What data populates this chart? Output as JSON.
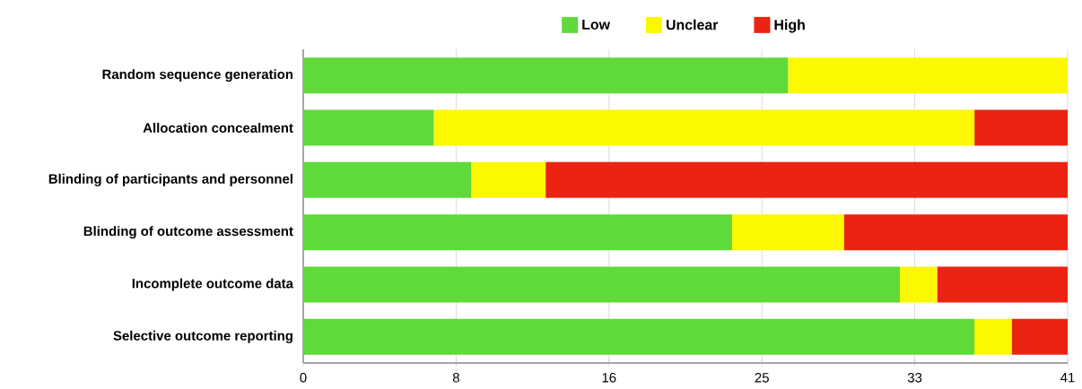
{
  "chart_data": {
    "type": "bar",
    "orientation": "horizontal",
    "stacked": true,
    "categories": [
      "Random sequence generation",
      "Allocation concealment",
      "Blinding of participants and personnel",
      "Blinding of outcome assessment",
      "Incomplete outcome data",
      "Selective outcome reporting"
    ],
    "series": [
      {
        "name": "Low",
        "color": "#5fda3a",
        "values": [
          26,
          7,
          9,
          23,
          32,
          36
        ]
      },
      {
        "name": "Unclear",
        "color": "#fcf800",
        "values": [
          15,
          29,
          4,
          6,
          2,
          2
        ]
      },
      {
        "name": "High",
        "color": "#ec2313",
        "values": [
          0,
          5,
          28,
          12,
          7,
          3
        ]
      }
    ],
    "xlim": [
      0,
      41
    ],
    "xticks": [
      0,
      {
        "value": 8.2,
        "label": "8"
      },
      {
        "value": 16.4,
        "label": "16"
      },
      {
        "value": 24.6,
        "label": "25"
      },
      {
        "value": 32.8,
        "label": "33"
      },
      41
    ],
    "grid": "x",
    "legend": "top"
  }
}
